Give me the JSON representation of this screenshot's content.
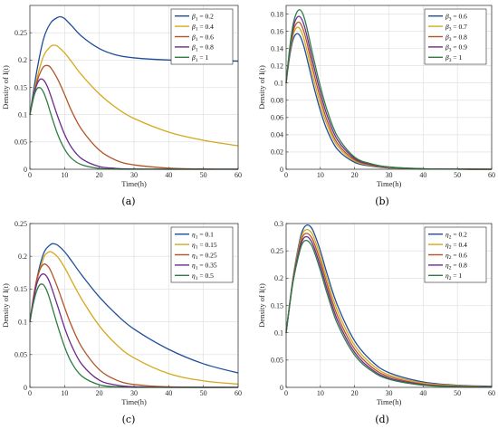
{
  "colors": {
    "blue": "#1f4e99",
    "gold": "#d6a81e",
    "orange": "#b35426",
    "purple": "#6a2a8e",
    "green": "#2e7d45"
  },
  "chart_data": [
    {
      "panel": "(a)",
      "type": "line",
      "xlabel": "Time(h)",
      "ylabel": "Density of I(t)",
      "xlim": [
        0,
        60
      ],
      "ylim": [
        0,
        0.3
      ],
      "xticks": [
        "0",
        "10",
        "20",
        "30",
        "40",
        "50",
        "60"
      ],
      "yticks": [
        "0",
        "0.05",
        "0.1",
        "0.15",
        "0.2",
        "0.25"
      ],
      "grid": true,
      "legend_position": "top-right",
      "series": [
        {
          "name": "β1 = 0.2",
          "legend_sub": "1",
          "legend_val": " = 0.2",
          "color": "#1f4e99",
          "x": [
            0,
            2,
            4,
            6,
            8,
            9,
            10,
            12,
            15,
            20,
            25,
            30,
            40,
            50,
            60
          ],
          "y": [
            0.1,
            0.18,
            0.24,
            0.268,
            0.278,
            0.279,
            0.276,
            0.263,
            0.243,
            0.221,
            0.209,
            0.204,
            0.2,
            0.199,
            0.198
          ]
        },
        {
          "name": "β1 = 0.4",
          "legend_sub": "1",
          "legend_val": " = 0.4",
          "color": "#d6a81e",
          "x": [
            0,
            2,
            4,
            6,
            7,
            8,
            10,
            12,
            15,
            20,
            25,
            30,
            40,
            50,
            60
          ],
          "y": [
            0.1,
            0.165,
            0.208,
            0.225,
            0.227,
            0.225,
            0.213,
            0.197,
            0.172,
            0.138,
            0.112,
            0.093,
            0.068,
            0.053,
            0.043
          ]
        },
        {
          "name": "β1 = 0.6",
          "legend_sub": "1",
          "legend_val": " = 0.6",
          "color": "#b35426",
          "x": [
            0,
            2,
            3,
            4,
            5,
            6,
            8,
            10,
            12,
            15,
            20,
            25,
            30,
            40,
            50,
            60
          ],
          "y": [
            0.1,
            0.158,
            0.177,
            0.188,
            0.19,
            0.186,
            0.165,
            0.137,
            0.107,
            0.072,
            0.035,
            0.016,
            0.008,
            0.002,
            0.0005,
            0.0001
          ]
        },
        {
          "name": "β1 = 0.8",
          "legend_sub": "1",
          "legend_val": " = 0.8",
          "color": "#6a2a8e",
          "x": [
            0,
            1,
            2,
            3,
            4,
            5,
            6,
            8,
            10,
            12,
            15,
            20,
            25,
            30,
            40,
            60
          ],
          "y": [
            0.1,
            0.133,
            0.155,
            0.165,
            0.163,
            0.152,
            0.135,
            0.097,
            0.064,
            0.04,
            0.019,
            0.005,
            0.0015,
            0.0004,
            0.0,
            0.0
          ]
        },
        {
          "name": "β1 = 1",
          "legend_sub": "1",
          "legend_val": " = 1",
          "color": "#2e7d45",
          "x": [
            0,
            1,
            2,
            3,
            4,
            5,
            6,
            8,
            10,
            12,
            15,
            20,
            25,
            30,
            40,
            60
          ],
          "y": [
            0.1,
            0.13,
            0.147,
            0.149,
            0.14,
            0.123,
            0.102,
            0.064,
            0.037,
            0.02,
            0.008,
            0.0015,
            0.0003,
            0.0,
            0.0,
            0.0
          ]
        }
      ]
    },
    {
      "panel": "(b)",
      "type": "line",
      "xlabel": "Time(h)",
      "ylabel": "Density of I(t)",
      "xlim": [
        0,
        60
      ],
      "ylim": [
        0,
        0.19
      ],
      "xticks": [
        "0",
        "10",
        "20",
        "30",
        "40",
        "50",
        "60"
      ],
      "yticks": [
        "0",
        "0.02",
        "0.04",
        "0.06",
        "0.08",
        "0.1",
        "0.12",
        "0.14",
        "0.16",
        "0.18"
      ],
      "grid": true,
      "legend_position": "top-right",
      "series": [
        {
          "name": "β3 = 0.6",
          "legend_sub": "3",
          "legend_val": " = 0.6",
          "color": "#1f4e99",
          "x": [
            0,
            1,
            2,
            3,
            4,
            5,
            6,
            8,
            10,
            12,
            15,
            20,
            25,
            30,
            40,
            50,
            60
          ],
          "y": [
            0.1,
            0.13,
            0.15,
            0.157,
            0.155,
            0.145,
            0.13,
            0.097,
            0.068,
            0.045,
            0.023,
            0.008,
            0.0035,
            0.0015,
            0.0003,
            0.0001,
            0.0
          ]
        },
        {
          "name": "β3 = 0.7",
          "legend_sub": "3",
          "legend_val": " = 0.7",
          "color": "#d6a81e",
          "x": [
            0,
            1,
            2,
            3,
            4,
            5,
            6,
            8,
            10,
            12,
            15,
            20,
            25,
            30,
            40,
            50,
            60
          ],
          "y": [
            0.1,
            0.133,
            0.155,
            0.164,
            0.163,
            0.154,
            0.139,
            0.105,
            0.075,
            0.051,
            0.027,
            0.0095,
            0.0042,
            0.0018,
            0.0004,
            0.0001,
            0.0
          ]
        },
        {
          "name": "β3 = 0.8",
          "legend_sub": "3",
          "legend_val": " = 0.8",
          "color": "#b35426",
          "x": [
            0,
            1,
            2,
            3,
            4,
            5,
            6,
            8,
            10,
            12,
            15,
            20,
            25,
            30,
            40,
            50,
            60
          ],
          "y": [
            0.1,
            0.135,
            0.159,
            0.169,
            0.17,
            0.162,
            0.148,
            0.113,
            0.082,
            0.056,
            0.03,
            0.011,
            0.0048,
            0.0021,
            0.0004,
            0.0001,
            0.0
          ]
        },
        {
          "name": "β3 = 0.9",
          "legend_sub": "3",
          "legend_val": " = 0.9",
          "color": "#6a2a8e",
          "x": [
            0,
            1,
            2,
            3,
            4,
            5,
            6,
            8,
            10,
            12,
            15,
            20,
            25,
            30,
            40,
            50,
            60
          ],
          "y": [
            0.1,
            0.137,
            0.163,
            0.175,
            0.177,
            0.17,
            0.156,
            0.121,
            0.089,
            0.062,
            0.034,
            0.0125,
            0.0055,
            0.0024,
            0.0005,
            0.0001,
            0.0
          ]
        },
        {
          "name": "β3 = 1",
          "legend_sub": "3",
          "legend_val": " = 1",
          "color": "#2e7d45",
          "x": [
            0,
            1,
            2,
            3,
            4,
            5,
            6,
            8,
            10,
            12,
            15,
            20,
            25,
            30,
            40,
            50,
            60
          ],
          "y": [
            0.1,
            0.139,
            0.167,
            0.181,
            0.185,
            0.179,
            0.165,
            0.129,
            0.096,
            0.068,
            0.038,
            0.014,
            0.0062,
            0.0027,
            0.0006,
            0.0001,
            0.0
          ]
        }
      ]
    },
    {
      "panel": "(c)",
      "type": "line",
      "xlabel": "Time(h)",
      "ylabel": "Density of I(t)",
      "xlim": [
        0,
        60
      ],
      "ylim": [
        0,
        0.25
      ],
      "xticks": [
        "0",
        "10",
        "20",
        "30",
        "40",
        "50",
        "60"
      ],
      "yticks": [
        "0",
        "0.05",
        "0.1",
        "0.15",
        "0.2",
        "0.25"
      ],
      "grid": true,
      "legend_position": "top-right",
      "series": [
        {
          "name": "η1 = 0.1",
          "legend_sub": "1",
          "legend_val": " = 0.1",
          "color": "#1f4e99",
          "x": [
            0,
            2,
            4,
            6,
            7,
            8,
            10,
            12,
            15,
            20,
            25,
            30,
            40,
            50,
            60
          ],
          "y": [
            0.1,
            0.165,
            0.205,
            0.218,
            0.219,
            0.217,
            0.207,
            0.193,
            0.171,
            0.138,
            0.111,
            0.089,
            0.058,
            0.036,
            0.022
          ]
        },
        {
          "name": "η1 = 0.15",
          "legend_sub": "1",
          "legend_val": " = 0.15",
          "color": "#d6a81e",
          "x": [
            0,
            2,
            4,
            5,
            6,
            8,
            10,
            12,
            15,
            20,
            25,
            30,
            40,
            50,
            60
          ],
          "y": [
            0.1,
            0.162,
            0.198,
            0.205,
            0.207,
            0.199,
            0.183,
            0.163,
            0.134,
            0.094,
            0.065,
            0.045,
            0.021,
            0.01,
            0.005
          ]
        },
        {
          "name": "η1 = 0.25",
          "legend_sub": "1",
          "legend_val": " = 0.25",
          "color": "#b35426",
          "x": [
            0,
            1,
            2,
            3,
            4,
            5,
            6,
            8,
            10,
            12,
            15,
            20,
            25,
            30,
            40,
            60
          ],
          "y": [
            0.1,
            0.137,
            0.165,
            0.181,
            0.188,
            0.186,
            0.178,
            0.152,
            0.122,
            0.094,
            0.061,
            0.027,
            0.011,
            0.0045,
            0.0008,
            0.0
          ]
        },
        {
          "name": "η1 = 0.35",
          "legend_sub": "1",
          "legend_val": " = 0.35",
          "color": "#6a2a8e",
          "x": [
            0,
            1,
            2,
            3,
            4,
            5,
            6,
            8,
            10,
            12,
            15,
            20,
            25,
            30,
            40,
            60
          ],
          "y": [
            0.1,
            0.133,
            0.158,
            0.17,
            0.173,
            0.168,
            0.156,
            0.124,
            0.091,
            0.064,
            0.035,
            0.011,
            0.0035,
            0.001,
            0.0,
            0.0
          ]
        },
        {
          "name": "η1 = 0.5",
          "legend_sub": "1",
          "legend_val": " = 0.5",
          "color": "#2e7d45",
          "x": [
            0,
            1,
            2,
            3,
            4,
            5,
            6,
            8,
            10,
            12,
            15,
            20,
            25,
            30,
            40,
            60
          ],
          "y": [
            0.1,
            0.128,
            0.148,
            0.157,
            0.156,
            0.146,
            0.13,
            0.094,
            0.062,
            0.038,
            0.017,
            0.004,
            0.001,
            0.0,
            0.0,
            0.0
          ]
        }
      ]
    },
    {
      "panel": "(d)",
      "type": "line",
      "xlabel": "Time(h)",
      "ylabel": "Density of I(t)",
      "xlim": [
        0,
        60
      ],
      "ylim": [
        0,
        0.3
      ],
      "xticks": [
        "0",
        "10",
        "20",
        "30",
        "40",
        "50",
        "60"
      ],
      "yticks": [
        "0",
        "0.05",
        "0.1",
        "0.15",
        "0.2",
        "0.25",
        "0.3"
      ],
      "grid": true,
      "legend_position": "top-right",
      "series": [
        {
          "name": "η2 = 0.2",
          "legend_sub": "2",
          "legend_val": " = 0.2",
          "color": "#1f4e99",
          "x": [
            0,
            2,
            4,
            5,
            6,
            7,
            8,
            10,
            12,
            15,
            20,
            25,
            30,
            40,
            50,
            60
          ],
          "y": [
            0.1,
            0.2,
            0.27,
            0.29,
            0.297,
            0.295,
            0.285,
            0.25,
            0.207,
            0.15,
            0.085,
            0.048,
            0.027,
            0.01,
            0.004,
            0.002
          ]
        },
        {
          "name": "η2 = 0.4",
          "legend_sub": "2",
          "legend_val": " = 0.4",
          "color": "#d6a81e",
          "x": [
            0,
            2,
            4,
            5,
            6,
            7,
            8,
            10,
            12,
            15,
            20,
            25,
            30,
            40,
            50,
            60
          ],
          "y": [
            0.1,
            0.198,
            0.265,
            0.284,
            0.289,
            0.286,
            0.276,
            0.24,
            0.197,
            0.14,
            0.077,
            0.042,
            0.023,
            0.008,
            0.003,
            0.001
          ]
        },
        {
          "name": "η2 = 0.6",
          "legend_sub": "2",
          "legend_val": " = 0.6",
          "color": "#b35426",
          "x": [
            0,
            2,
            4,
            5,
            6,
            7,
            8,
            10,
            12,
            15,
            20,
            25,
            30,
            40,
            50,
            60
          ],
          "y": [
            0.1,
            0.196,
            0.26,
            0.278,
            0.282,
            0.278,
            0.267,
            0.231,
            0.188,
            0.131,
            0.07,
            0.037,
            0.02,
            0.006,
            0.002,
            0.001
          ]
        },
        {
          "name": "η2 = 0.8",
          "legend_sub": "2",
          "legend_val": " = 0.8",
          "color": "#6a2a8e",
          "x": [
            0,
            2,
            4,
            5,
            6,
            7,
            8,
            10,
            12,
            15,
            20,
            25,
            30,
            40,
            50,
            60
          ],
          "y": [
            0.1,
            0.194,
            0.255,
            0.272,
            0.276,
            0.271,
            0.259,
            0.222,
            0.179,
            0.123,
            0.064,
            0.033,
            0.017,
            0.005,
            0.0015,
            0.0005
          ]
        },
        {
          "name": "η2 = 1",
          "legend_sub": "2",
          "legend_val": " = 1",
          "color": "#2e7d45",
          "x": [
            0,
            2,
            4,
            5,
            6,
            7,
            8,
            10,
            12,
            15,
            20,
            25,
            30,
            40,
            50,
            60
          ],
          "y": [
            0.1,
            0.192,
            0.25,
            0.266,
            0.269,
            0.264,
            0.252,
            0.214,
            0.171,
            0.116,
            0.059,
            0.03,
            0.015,
            0.004,
            0.001,
            0.0003
          ]
        }
      ]
    }
  ]
}
